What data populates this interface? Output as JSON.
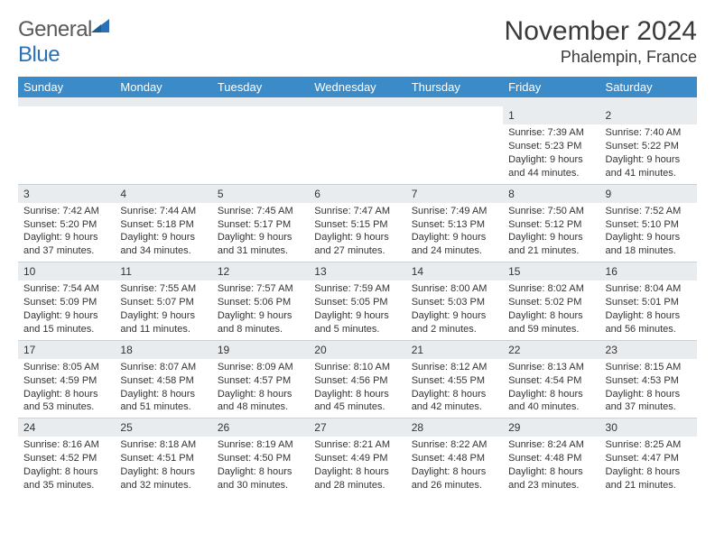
{
  "brand": {
    "general": "General",
    "blue": "Blue"
  },
  "title": "November 2024",
  "location": "Phalempin, France",
  "colors": {
    "header_bg": "#3b8bc9",
    "header_text": "#ffffff",
    "daynum_bg": "#e9ecef",
    "cell_border": "#c8d0d8",
    "text": "#333333",
    "logo_gray": "#5a5a5a",
    "logo_blue": "#2a72b5",
    "background": "#ffffff"
  },
  "dow": [
    "Sunday",
    "Monday",
    "Tuesday",
    "Wednesday",
    "Thursday",
    "Friday",
    "Saturday"
  ],
  "weeks": [
    [
      null,
      null,
      null,
      null,
      null,
      {
        "n": "1",
        "sr": "Sunrise: 7:39 AM",
        "ss": "Sunset: 5:23 PM",
        "dl": "Daylight: 9 hours and 44 minutes."
      },
      {
        "n": "2",
        "sr": "Sunrise: 7:40 AM",
        "ss": "Sunset: 5:22 PM",
        "dl": "Daylight: 9 hours and 41 minutes."
      }
    ],
    [
      {
        "n": "3",
        "sr": "Sunrise: 7:42 AM",
        "ss": "Sunset: 5:20 PM",
        "dl": "Daylight: 9 hours and 37 minutes."
      },
      {
        "n": "4",
        "sr": "Sunrise: 7:44 AM",
        "ss": "Sunset: 5:18 PM",
        "dl": "Daylight: 9 hours and 34 minutes."
      },
      {
        "n": "5",
        "sr": "Sunrise: 7:45 AM",
        "ss": "Sunset: 5:17 PM",
        "dl": "Daylight: 9 hours and 31 minutes."
      },
      {
        "n": "6",
        "sr": "Sunrise: 7:47 AM",
        "ss": "Sunset: 5:15 PM",
        "dl": "Daylight: 9 hours and 27 minutes."
      },
      {
        "n": "7",
        "sr": "Sunrise: 7:49 AM",
        "ss": "Sunset: 5:13 PM",
        "dl": "Daylight: 9 hours and 24 minutes."
      },
      {
        "n": "8",
        "sr": "Sunrise: 7:50 AM",
        "ss": "Sunset: 5:12 PM",
        "dl": "Daylight: 9 hours and 21 minutes."
      },
      {
        "n": "9",
        "sr": "Sunrise: 7:52 AM",
        "ss": "Sunset: 5:10 PM",
        "dl": "Daylight: 9 hours and 18 minutes."
      }
    ],
    [
      {
        "n": "10",
        "sr": "Sunrise: 7:54 AM",
        "ss": "Sunset: 5:09 PM",
        "dl": "Daylight: 9 hours and 15 minutes."
      },
      {
        "n": "11",
        "sr": "Sunrise: 7:55 AM",
        "ss": "Sunset: 5:07 PM",
        "dl": "Daylight: 9 hours and 11 minutes."
      },
      {
        "n": "12",
        "sr": "Sunrise: 7:57 AM",
        "ss": "Sunset: 5:06 PM",
        "dl": "Daylight: 9 hours and 8 minutes."
      },
      {
        "n": "13",
        "sr": "Sunrise: 7:59 AM",
        "ss": "Sunset: 5:05 PM",
        "dl": "Daylight: 9 hours and 5 minutes."
      },
      {
        "n": "14",
        "sr": "Sunrise: 8:00 AM",
        "ss": "Sunset: 5:03 PM",
        "dl": "Daylight: 9 hours and 2 minutes."
      },
      {
        "n": "15",
        "sr": "Sunrise: 8:02 AM",
        "ss": "Sunset: 5:02 PM",
        "dl": "Daylight: 8 hours and 59 minutes."
      },
      {
        "n": "16",
        "sr": "Sunrise: 8:04 AM",
        "ss": "Sunset: 5:01 PM",
        "dl": "Daylight: 8 hours and 56 minutes."
      }
    ],
    [
      {
        "n": "17",
        "sr": "Sunrise: 8:05 AM",
        "ss": "Sunset: 4:59 PM",
        "dl": "Daylight: 8 hours and 53 minutes."
      },
      {
        "n": "18",
        "sr": "Sunrise: 8:07 AM",
        "ss": "Sunset: 4:58 PM",
        "dl": "Daylight: 8 hours and 51 minutes."
      },
      {
        "n": "19",
        "sr": "Sunrise: 8:09 AM",
        "ss": "Sunset: 4:57 PM",
        "dl": "Daylight: 8 hours and 48 minutes."
      },
      {
        "n": "20",
        "sr": "Sunrise: 8:10 AM",
        "ss": "Sunset: 4:56 PM",
        "dl": "Daylight: 8 hours and 45 minutes."
      },
      {
        "n": "21",
        "sr": "Sunrise: 8:12 AM",
        "ss": "Sunset: 4:55 PM",
        "dl": "Daylight: 8 hours and 42 minutes."
      },
      {
        "n": "22",
        "sr": "Sunrise: 8:13 AM",
        "ss": "Sunset: 4:54 PM",
        "dl": "Daylight: 8 hours and 40 minutes."
      },
      {
        "n": "23",
        "sr": "Sunrise: 8:15 AM",
        "ss": "Sunset: 4:53 PM",
        "dl": "Daylight: 8 hours and 37 minutes."
      }
    ],
    [
      {
        "n": "24",
        "sr": "Sunrise: 8:16 AM",
        "ss": "Sunset: 4:52 PM",
        "dl": "Daylight: 8 hours and 35 minutes."
      },
      {
        "n": "25",
        "sr": "Sunrise: 8:18 AM",
        "ss": "Sunset: 4:51 PM",
        "dl": "Daylight: 8 hours and 32 minutes."
      },
      {
        "n": "26",
        "sr": "Sunrise: 8:19 AM",
        "ss": "Sunset: 4:50 PM",
        "dl": "Daylight: 8 hours and 30 minutes."
      },
      {
        "n": "27",
        "sr": "Sunrise: 8:21 AM",
        "ss": "Sunset: 4:49 PM",
        "dl": "Daylight: 8 hours and 28 minutes."
      },
      {
        "n": "28",
        "sr": "Sunrise: 8:22 AM",
        "ss": "Sunset: 4:48 PM",
        "dl": "Daylight: 8 hours and 26 minutes."
      },
      {
        "n": "29",
        "sr": "Sunrise: 8:24 AM",
        "ss": "Sunset: 4:48 PM",
        "dl": "Daylight: 8 hours and 23 minutes."
      },
      {
        "n": "30",
        "sr": "Sunrise: 8:25 AM",
        "ss": "Sunset: 4:47 PM",
        "dl": "Daylight: 8 hours and 21 minutes."
      }
    ]
  ]
}
